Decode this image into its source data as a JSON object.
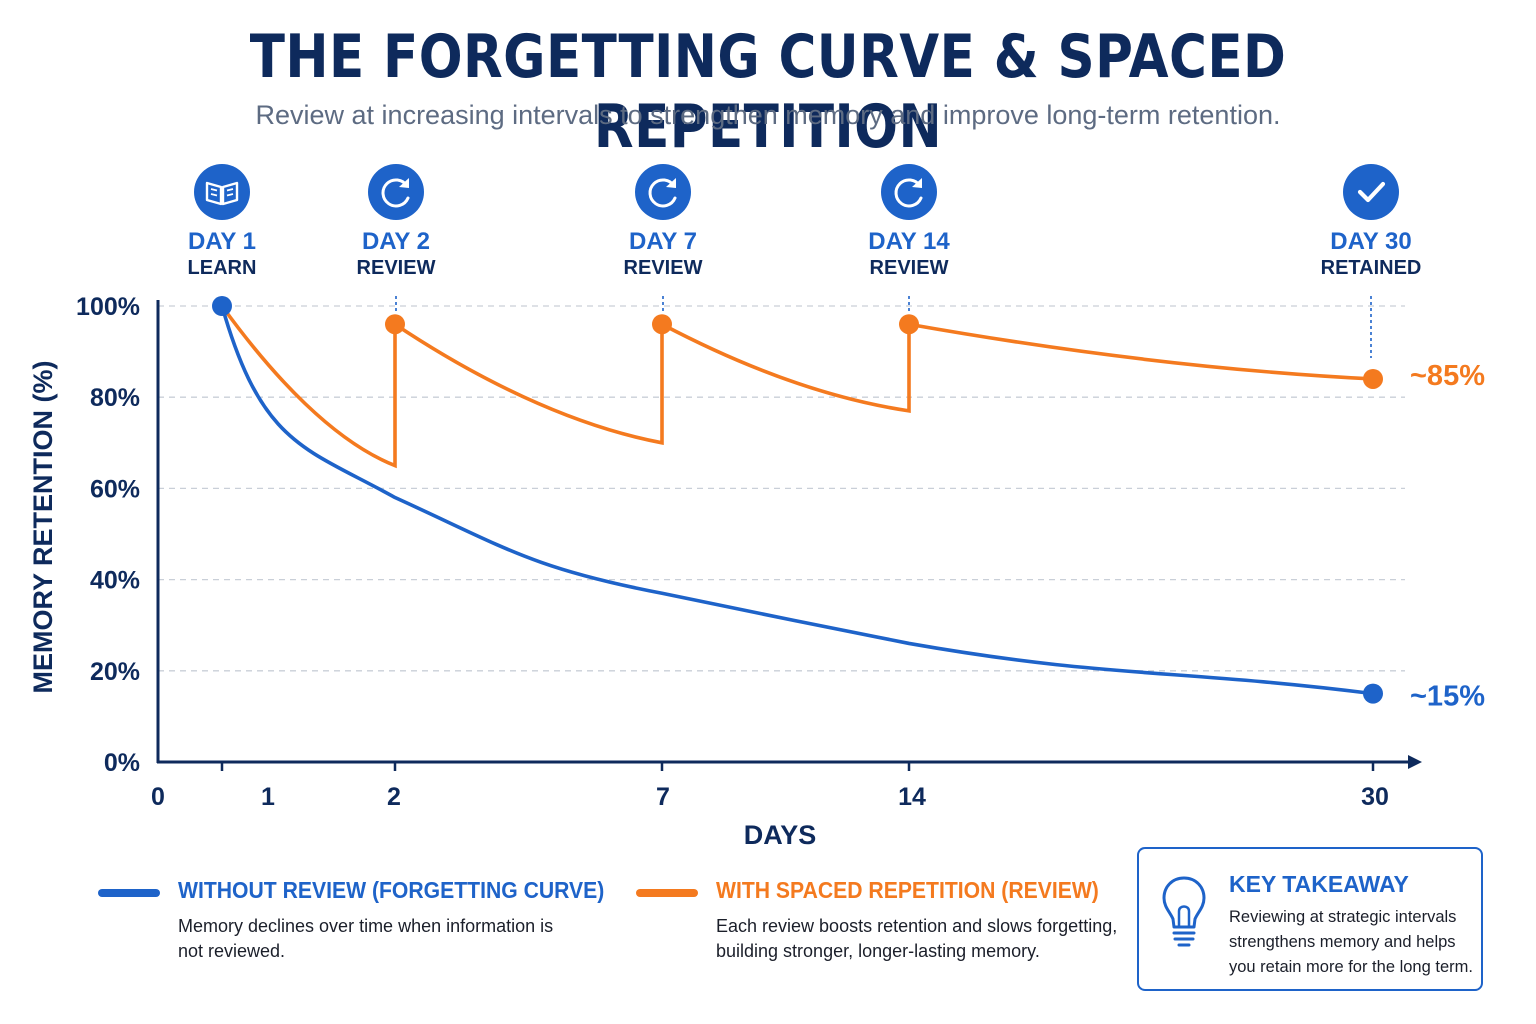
{
  "header": {
    "title": "THE FORGETTING CURVE & SPACED REPETITION",
    "subtitle": "Review at increasing intervals to strengthen memory and improve long-term retention."
  },
  "colors": {
    "without_review": "#1e63c9",
    "with_review": "#f47a1f",
    "navy": "#0e2a5c",
    "grid": "#c9cfd8"
  },
  "chart_data": {
    "type": "line",
    "ylabel": "MEMORY RETENTION (%)",
    "xlabel": "DAYS",
    "ylim": [
      0,
      100
    ],
    "yticks": [
      "0%",
      "20%",
      "40%",
      "60%",
      "80%",
      "100%"
    ],
    "xticks": [
      "0",
      "1",
      "2",
      "7",
      "14",
      "30"
    ],
    "grid": true,
    "milestones": [
      {
        "day": "DAY 1",
        "label": "LEARN",
        "icon": "book-icon"
      },
      {
        "day": "DAY 2",
        "label": "REVIEW",
        "icon": "refresh-icon"
      },
      {
        "day": "DAY 7",
        "label": "REVIEW",
        "icon": "refresh-icon"
      },
      {
        "day": "DAY 14",
        "label": "REVIEW",
        "icon": "refresh-icon"
      },
      {
        "day": "DAY 30",
        "label": "RETAINED",
        "icon": "check-icon"
      }
    ],
    "series": [
      {
        "name": "WITHOUT REVIEW (FORGETTING CURVE)",
        "color": "#1e63c9",
        "points": [
          [
            1,
            100
          ],
          [
            2,
            58
          ],
          [
            7,
            37
          ],
          [
            14,
            26
          ],
          [
            30,
            15
          ]
        ],
        "end_label": "~15%"
      },
      {
        "name": "WITH SPACED REPETITION (REVIEW)",
        "color": "#f47a1f",
        "points": [
          [
            1,
            100
          ],
          [
            2,
            65
          ],
          [
            2,
            96
          ],
          [
            7,
            70
          ],
          [
            7,
            96
          ],
          [
            14,
            77
          ],
          [
            14,
            96
          ],
          [
            30,
            84
          ]
        ],
        "end_label": "~85%"
      }
    ]
  },
  "legend": {
    "without_label": "WITHOUT REVIEW (FORGETTING CURVE)",
    "without_desc": "Memory declines over time when information is not reviewed.",
    "with_label": "WITH SPACED REPETITION (REVIEW)",
    "with_desc": "Each review boosts retention and slows forgetting, building stronger, longer-lasting memory."
  },
  "takeaway": {
    "icon": "lightbulb-icon",
    "title": "KEY TAKEAWAY",
    "text": "Reviewing at strategic intervals strengthens memory and helps you retain more for the long term."
  }
}
